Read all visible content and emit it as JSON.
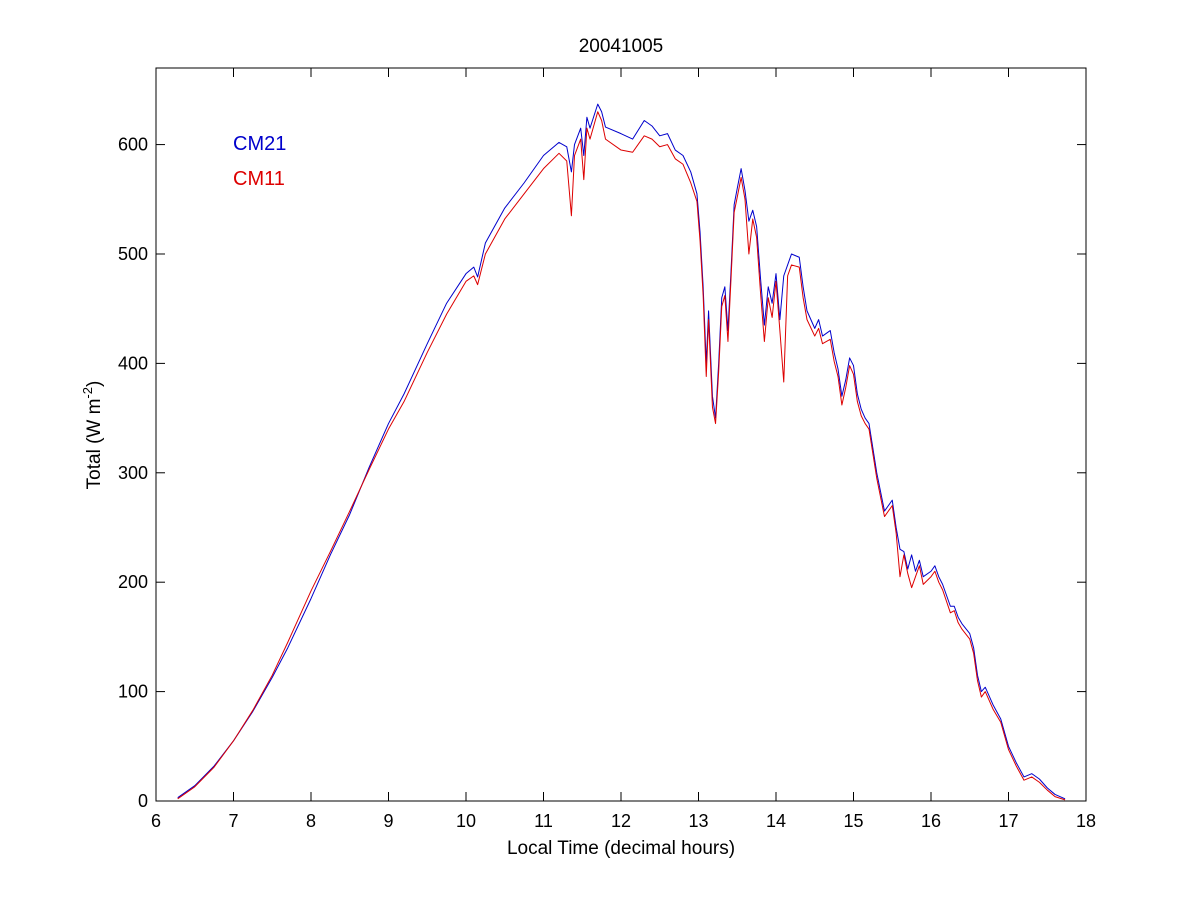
{
  "chart_data": {
    "type": "line",
    "title": "20041005",
    "xlabel": "Local Time (decimal hours)",
    "ylabel_main": "Total (W m",
    "ylabel_sup": "-2",
    "ylabel_close": ")",
    "xlim": [
      6,
      18
    ],
    "ylim": [
      0,
      670
    ],
    "xticks": [
      "6",
      "7",
      "8",
      "9",
      "10",
      "11",
      "12",
      "13",
      "14",
      "15",
      "16",
      "17",
      "18"
    ],
    "yticks": [
      "0",
      "100",
      "200",
      "300",
      "400",
      "500",
      "600"
    ],
    "grid": false,
    "legend_placement": "top-left",
    "series": [
      {
        "name": "CM21",
        "color": "#0000cc",
        "points": [
          [
            6.28,
            3
          ],
          [
            6.5,
            14
          ],
          [
            6.75,
            32
          ],
          [
            7.0,
            55
          ],
          [
            7.25,
            82
          ],
          [
            7.5,
            113
          ],
          [
            7.7,
            140
          ],
          [
            8.0,
            185
          ],
          [
            8.25,
            225
          ],
          [
            8.5,
            262
          ],
          [
            8.75,
            305
          ],
          [
            9.0,
            345
          ],
          [
            9.2,
            372
          ],
          [
            9.5,
            418
          ],
          [
            9.75,
            455
          ],
          [
            10.0,
            482
          ],
          [
            10.1,
            488
          ],
          [
            10.15,
            479
          ],
          [
            10.25,
            510
          ],
          [
            10.5,
            542
          ],
          [
            10.75,
            565
          ],
          [
            11.0,
            590
          ],
          [
            11.2,
            602
          ],
          [
            11.3,
            598
          ],
          [
            11.36,
            575
          ],
          [
            11.4,
            600
          ],
          [
            11.48,
            615
          ],
          [
            11.52,
            590
          ],
          [
            11.56,
            625
          ],
          [
            11.6,
            615
          ],
          [
            11.7,
            637
          ],
          [
            11.75,
            630
          ],
          [
            11.8,
            616
          ],
          [
            12.0,
            610
          ],
          [
            12.15,
            605
          ],
          [
            12.3,
            622
          ],
          [
            12.4,
            617
          ],
          [
            12.5,
            608
          ],
          [
            12.6,
            610
          ],
          [
            12.7,
            595
          ],
          [
            12.8,
            590
          ],
          [
            12.9,
            575
          ],
          [
            12.98,
            555
          ],
          [
            13.02,
            520
          ],
          [
            13.06,
            470
          ],
          [
            13.1,
            400
          ],
          [
            13.13,
            448
          ],
          [
            13.18,
            370
          ],
          [
            13.22,
            350
          ],
          [
            13.26,
            400
          ],
          [
            13.3,
            460
          ],
          [
            13.34,
            470
          ],
          [
            13.38,
            430
          ],
          [
            13.42,
            485
          ],
          [
            13.46,
            545
          ],
          [
            13.5,
            560
          ],
          [
            13.55,
            578
          ],
          [
            13.6,
            558
          ],
          [
            13.65,
            530
          ],
          [
            13.7,
            540
          ],
          [
            13.75,
            525
          ],
          [
            13.8,
            478
          ],
          [
            13.85,
            435
          ],
          [
            13.9,
            470
          ],
          [
            13.95,
            455
          ],
          [
            14.0,
            482
          ],
          [
            14.05,
            440
          ],
          [
            14.1,
            480
          ],
          [
            14.15,
            490
          ],
          [
            14.2,
            500
          ],
          [
            14.3,
            497
          ],
          [
            14.35,
            470
          ],
          [
            14.4,
            448
          ],
          [
            14.5,
            432
          ],
          [
            14.55,
            440
          ],
          [
            14.6,
            425
          ],
          [
            14.7,
            430
          ],
          [
            14.75,
            410
          ],
          [
            14.8,
            395
          ],
          [
            14.85,
            370
          ],
          [
            14.9,
            385
          ],
          [
            14.95,
            405
          ],
          [
            15.0,
            398
          ],
          [
            15.05,
            372
          ],
          [
            15.1,
            358
          ],
          [
            15.15,
            350
          ],
          [
            15.2,
            345
          ],
          [
            15.3,
            300
          ],
          [
            15.4,
            265
          ],
          [
            15.5,
            275
          ],
          [
            15.55,
            250
          ],
          [
            15.6,
            230
          ],
          [
            15.65,
            228
          ],
          [
            15.7,
            212
          ],
          [
            15.75,
            225
          ],
          [
            15.8,
            210
          ],
          [
            15.85,
            220
          ],
          [
            15.9,
            205
          ],
          [
            16.0,
            210
          ],
          [
            16.05,
            215
          ],
          [
            16.1,
            205
          ],
          [
            16.15,
            198
          ],
          [
            16.25,
            178
          ],
          [
            16.3,
            178
          ],
          [
            16.35,
            168
          ],
          [
            16.4,
            162
          ],
          [
            16.5,
            153
          ],
          [
            16.55,
            140
          ],
          [
            16.6,
            115
          ],
          [
            16.65,
            100
          ],
          [
            16.7,
            104
          ],
          [
            16.75,
            96
          ],
          [
            16.8,
            88
          ],
          [
            16.9,
            75
          ],
          [
            17.0,
            50
          ],
          [
            17.1,
            35
          ],
          [
            17.2,
            22
          ],
          [
            17.3,
            25
          ],
          [
            17.4,
            20
          ],
          [
            17.5,
            12
          ],
          [
            17.6,
            6
          ],
          [
            17.73,
            2
          ]
        ]
      },
      {
        "name": "CM11",
        "color": "#dd0000",
        "points": [
          [
            6.28,
            2
          ],
          [
            6.5,
            13
          ],
          [
            6.75,
            31
          ],
          [
            7.0,
            55
          ],
          [
            7.25,
            83
          ],
          [
            7.5,
            115
          ],
          [
            7.7,
            145
          ],
          [
            8.0,
            192
          ],
          [
            8.25,
            228
          ],
          [
            8.5,
            265
          ],
          [
            8.75,
            303
          ],
          [
            9.0,
            340
          ],
          [
            9.2,
            365
          ],
          [
            9.5,
            410
          ],
          [
            9.75,
            445
          ],
          [
            10.0,
            475
          ],
          [
            10.1,
            480
          ],
          [
            10.15,
            472
          ],
          [
            10.25,
            500
          ],
          [
            10.5,
            532
          ],
          [
            10.75,
            555
          ],
          [
            11.0,
            578
          ],
          [
            11.2,
            592
          ],
          [
            11.3,
            585
          ],
          [
            11.36,
            535
          ],
          [
            11.4,
            590
          ],
          [
            11.48,
            605
          ],
          [
            11.52,
            568
          ],
          [
            11.56,
            615
          ],
          [
            11.6,
            605
          ],
          [
            11.7,
            630
          ],
          [
            11.75,
            622
          ],
          [
            11.8,
            605
          ],
          [
            12.0,
            595
          ],
          [
            12.15,
            593
          ],
          [
            12.3,
            608
          ],
          [
            12.4,
            605
          ],
          [
            12.5,
            598
          ],
          [
            12.6,
            600
          ],
          [
            12.7,
            587
          ],
          [
            12.8,
            582
          ],
          [
            12.9,
            565
          ],
          [
            12.98,
            548
          ],
          [
            13.02,
            512
          ],
          [
            13.06,
            462
          ],
          [
            13.1,
            388
          ],
          [
            13.13,
            440
          ],
          [
            13.18,
            360
          ],
          [
            13.22,
            345
          ],
          [
            13.26,
            392
          ],
          [
            13.3,
            452
          ],
          [
            13.34,
            462
          ],
          [
            13.38,
            420
          ],
          [
            13.42,
            478
          ],
          [
            13.46,
            538
          ],
          [
            13.5,
            552
          ],
          [
            13.55,
            570
          ],
          [
            13.6,
            550
          ],
          [
            13.65,
            500
          ],
          [
            13.7,
            532
          ],
          [
            13.75,
            515
          ],
          [
            13.8,
            465
          ],
          [
            13.85,
            420
          ],
          [
            13.9,
            460
          ],
          [
            13.95,
            442
          ],
          [
            14.0,
            475
          ],
          [
            14.05,
            430
          ],
          [
            14.1,
            383
          ],
          [
            14.15,
            480
          ],
          [
            14.2,
            490
          ],
          [
            14.3,
            488
          ],
          [
            14.35,
            460
          ],
          [
            14.4,
            440
          ],
          [
            14.5,
            425
          ],
          [
            14.55,
            432
          ],
          [
            14.6,
            418
          ],
          [
            14.7,
            422
          ],
          [
            14.75,
            402
          ],
          [
            14.8,
            388
          ],
          [
            14.85,
            362
          ],
          [
            14.9,
            378
          ],
          [
            14.95,
            398
          ],
          [
            15.0,
            390
          ],
          [
            15.05,
            365
          ],
          [
            15.1,
            352
          ],
          [
            15.15,
            345
          ],
          [
            15.2,
            340
          ],
          [
            15.3,
            295
          ],
          [
            15.4,
            260
          ],
          [
            15.5,
            270
          ],
          [
            15.55,
            245
          ],
          [
            15.6,
            205
          ],
          [
            15.65,
            225
          ],
          [
            15.7,
            208
          ],
          [
            15.75,
            195
          ],
          [
            15.8,
            205
          ],
          [
            15.85,
            215
          ],
          [
            15.9,
            198
          ],
          [
            16.0,
            205
          ],
          [
            16.05,
            210
          ],
          [
            16.1,
            200
          ],
          [
            16.15,
            193
          ],
          [
            16.25,
            172
          ],
          [
            16.3,
            174
          ],
          [
            16.35,
            163
          ],
          [
            16.4,
            157
          ],
          [
            16.5,
            148
          ],
          [
            16.55,
            135
          ],
          [
            16.6,
            110
          ],
          [
            16.65,
            95
          ],
          [
            16.7,
            100
          ],
          [
            16.75,
            92
          ],
          [
            16.8,
            84
          ],
          [
            16.9,
            72
          ],
          [
            17.0,
            47
          ],
          [
            17.1,
            32
          ],
          [
            17.2,
            19
          ],
          [
            17.3,
            22
          ],
          [
            17.4,
            17
          ],
          [
            17.5,
            10
          ],
          [
            17.6,
            4
          ],
          [
            17.73,
            1
          ]
        ]
      }
    ]
  }
}
